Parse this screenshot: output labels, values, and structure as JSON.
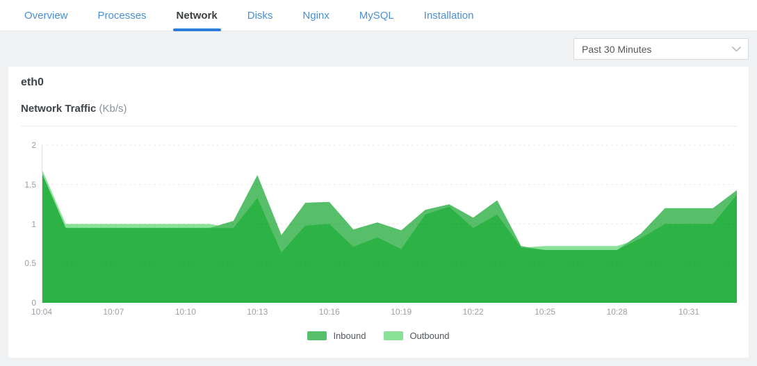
{
  "tabs": [
    {
      "label": "Overview",
      "active": false
    },
    {
      "label": "Processes",
      "active": false
    },
    {
      "label": "Network",
      "active": true
    },
    {
      "label": "Disks",
      "active": false
    },
    {
      "label": "Nginx",
      "active": false
    },
    {
      "label": "MySQL",
      "active": false
    },
    {
      "label": "Installation",
      "active": false
    }
  ],
  "filter": {
    "selected": "Past 30 Minutes"
  },
  "card": {
    "title": "eth0",
    "chart_title": "Network Traffic",
    "chart_unit": "(Kb/s)"
  },
  "chart_data": {
    "type": "area",
    "title": "Network Traffic (Kb/s)",
    "interface": "eth0",
    "x": [
      "10:04",
      "10:05",
      "10:06",
      "10:07",
      "10:08",
      "10:09",
      "10:10",
      "10:11",
      "10:12",
      "10:13",
      "10:14",
      "10:15",
      "10:16",
      "10:17",
      "10:18",
      "10:19",
      "10:20",
      "10:21",
      "10:22",
      "10:23",
      "10:24",
      "10:25",
      "10:26",
      "10:27",
      "10:28",
      "10:29",
      "10:30",
      "10:31",
      "10:32",
      "10:33"
    ],
    "x_tick_labels": [
      "10:04",
      "10:07",
      "10:10",
      "10:13",
      "10:16",
      "10:19",
      "10:22",
      "10:25",
      "10:28",
      "10:31"
    ],
    "x_tick_interval": 3,
    "series": [
      {
        "name": "Inbound",
        "color": "#57bf69",
        "values": [
          1.65,
          0.95,
          0.95,
          0.95,
          0.95,
          0.95,
          0.95,
          0.95,
          1.04,
          1.62,
          0.86,
          1.27,
          1.28,
          0.93,
          1.02,
          0.92,
          1.18,
          1.25,
          1.08,
          1.3,
          0.72,
          0.67,
          0.67,
          0.67,
          0.67,
          0.88,
          1.2,
          1.2,
          1.2,
          1.43
        ]
      },
      {
        "name": "Outbound",
        "color": "#89e298",
        "values": [
          1.7,
          1.0,
          1.0,
          1.0,
          1.0,
          1.0,
          1.0,
          1.0,
          0.95,
          1.33,
          0.64,
          0.98,
          1.0,
          0.71,
          0.83,
          0.68,
          1.12,
          1.22,
          0.95,
          1.12,
          0.7,
          0.72,
          0.72,
          0.72,
          0.72,
          0.82,
          1.0,
          1.0,
          1.0,
          1.37
        ]
      }
    ],
    "overlap_color": "#2db345",
    "ylim": [
      0,
      2
    ],
    "yticks": [
      0,
      0.5,
      1,
      1.5,
      2
    ],
    "grid": "dashed horizontal",
    "legend_position": "bottom"
  },
  "colors": {
    "accent_blue": "#2e7cd9",
    "tab_blue": "#4a8fd6",
    "grid_line": "rgba(40,44,48,0.10)",
    "axis_line": "#dfe1e3"
  }
}
